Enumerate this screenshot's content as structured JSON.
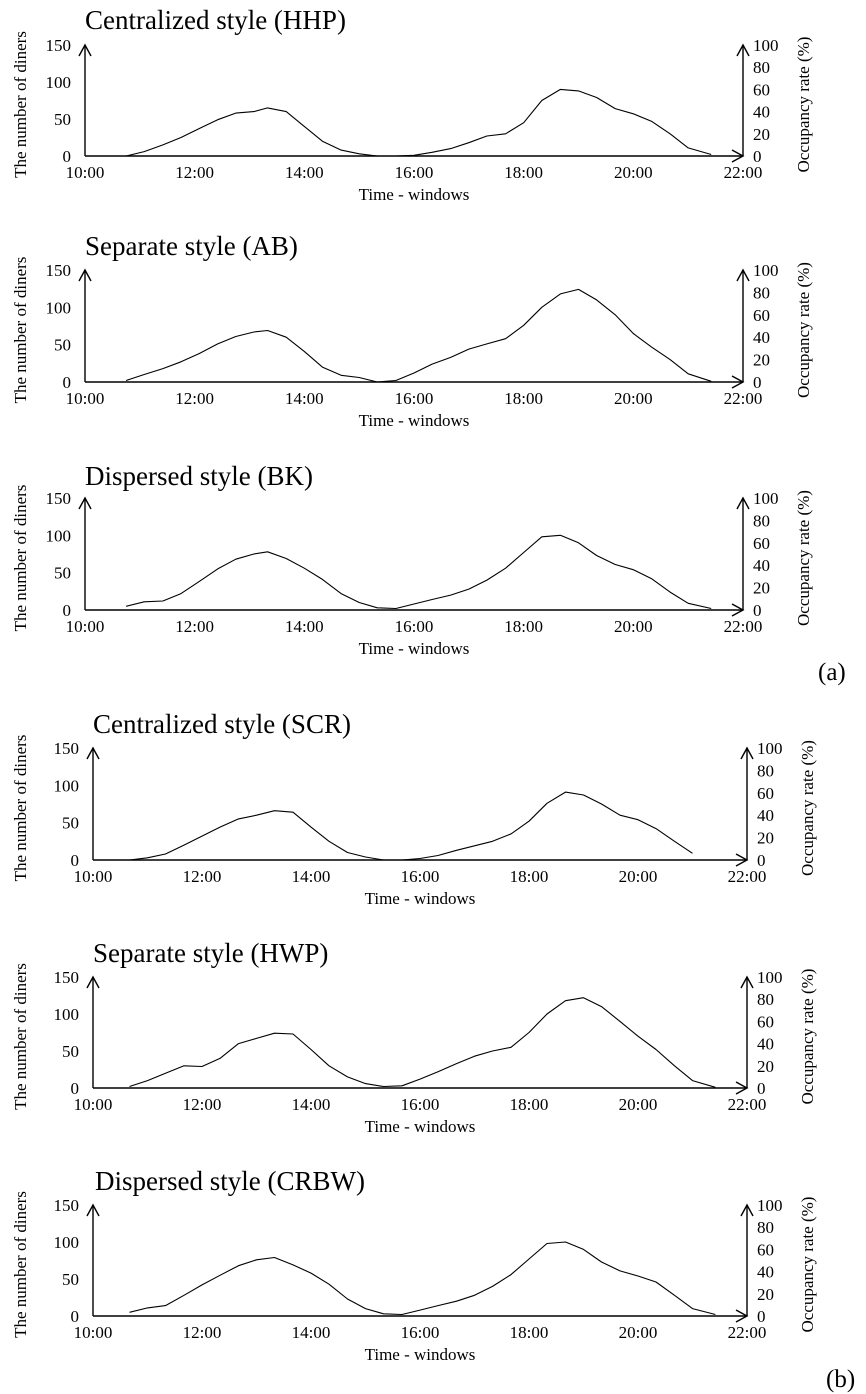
{
  "panel_labels": [
    "(a)",
    "(b)"
  ],
  "chart_data": [
    {
      "type": "line",
      "panel": "(a)",
      "title": "Centralized style (HHP)",
      "xlabel": "Time - windows",
      "ylabel": "The number of diners",
      "y2label": "Occupancy rate (%)",
      "x_ticks": [
        "10:00",
        "12:00",
        "14:00",
        "16:00",
        "18:00",
        "20:00",
        "22:00"
      ],
      "xlim": [
        10,
        22
      ],
      "y_ticks": [
        "0",
        "50",
        "100",
        "150"
      ],
      "ylim": [
        0,
        150
      ],
      "y2_ticks": [
        "0",
        "20",
        "40",
        "60",
        "80",
        "100"
      ],
      "y2lim": [
        0,
        100
      ],
      "series": [
        {
          "x": [
            10.75,
            11.08,
            11.42,
            11.75,
            12.08,
            12.42,
            12.75,
            13.08,
            13.33,
            13.67,
            14.0,
            14.33,
            14.67,
            15.0,
            15.33,
            15.67,
            16.0,
            16.33,
            16.67,
            17.0,
            17.33,
            17.67,
            18.0,
            18.33,
            18.67,
            19.0,
            19.33,
            19.67,
            20.0,
            20.33,
            20.67,
            21.0,
            21.42
          ],
          "y": [
            0,
            6,
            15,
            25,
            37,
            49,
            58,
            60,
            65,
            60,
            40,
            20,
            8,
            3,
            0,
            0,
            1,
            5,
            10,
            18,
            27,
            30,
            45,
            75,
            90,
            88,
            79,
            64,
            57,
            47,
            30,
            11,
            2
          ]
        }
      ]
    },
    {
      "type": "line",
      "panel": "(a)",
      "title": "Separate style (AB)",
      "xlabel": "Time - windows",
      "ylabel": "The number of diners",
      "y2label": "Occupancy rate (%)",
      "x_ticks": [
        "10:00",
        "12:00",
        "14:00",
        "16:00",
        "18:00",
        "20:00",
        "22:00"
      ],
      "xlim": [
        10,
        22
      ],
      "y_ticks": [
        "0",
        "50",
        "100",
        "150"
      ],
      "ylim": [
        0,
        150
      ],
      "y2_ticks": [
        "0",
        "20",
        "40",
        "60",
        "80",
        "100"
      ],
      "y2lim": [
        0,
        100
      ],
      "series": [
        {
          "x": [
            10.75,
            11.08,
            11.42,
            11.75,
            12.08,
            12.42,
            12.75,
            13.08,
            13.33,
            13.67,
            14.0,
            14.33,
            14.67,
            15.0,
            15.33,
            15.67,
            16.0,
            16.33,
            16.67,
            17.0,
            17.33,
            17.67,
            18.0,
            18.33,
            18.67,
            19.0,
            19.33,
            19.67,
            20.0,
            20.33,
            20.67,
            21.0,
            21.42
          ],
          "y": [
            2,
            10,
            18,
            27,
            38,
            51,
            61,
            67,
            69,
            60,
            41,
            20,
            9,
            6,
            0,
            2,
            12,
            24,
            33,
            44,
            51,
            58,
            76,
            100,
            118,
            124,
            110,
            90,
            65,
            47,
            30,
            11,
            1
          ]
        }
      ]
    },
    {
      "type": "line",
      "panel": "(a)",
      "title": "Dispersed style (BK)",
      "xlabel": "Time - windows",
      "ylabel": "The number of diners",
      "y2label": "Occupancy rate (%)",
      "x_ticks": [
        "10:00",
        "12:00",
        "14:00",
        "16:00",
        "18:00",
        "20:00",
        "22:00"
      ],
      "xlim": [
        10,
        22
      ],
      "y_ticks": [
        "0",
        "50",
        "100",
        "150"
      ],
      "ylim": [
        0,
        150
      ],
      "y2_ticks": [
        "0",
        "20",
        "40",
        "60",
        "80",
        "100"
      ],
      "y2lim": [
        0,
        100
      ],
      "series": [
        {
          "x": [
            10.75,
            11.08,
            11.42,
            11.75,
            12.08,
            12.42,
            12.75,
            13.08,
            13.33,
            13.67,
            14.0,
            14.33,
            14.67,
            15.0,
            15.33,
            15.67,
            16.0,
            16.33,
            16.67,
            17.0,
            17.33,
            17.67,
            18.0,
            18.33,
            18.67,
            19.0,
            19.33,
            19.67,
            20.0,
            20.33,
            20.67,
            21.0,
            21.42
          ],
          "y": [
            5,
            11,
            12,
            22,
            38,
            55,
            68,
            75,
            78,
            69,
            56,
            41,
            22,
            10,
            3,
            2,
            8,
            14,
            20,
            28,
            40,
            56,
            77,
            98,
            100,
            90,
            73,
            61,
            54,
            42,
            24,
            9,
            2
          ]
        }
      ]
    },
    {
      "type": "line",
      "panel": "(b)",
      "title": "Centralized style (SCR)",
      "xlabel": "Time - windows",
      "ylabel": "The number of diners",
      "y2label": "Occupancy rate (%)",
      "x_ticks": [
        "10:00",
        "12:00",
        "14:00",
        "16:00",
        "18:00",
        "20:00",
        "22:00"
      ],
      "xlim": [
        10,
        22
      ],
      "y_ticks": [
        "0",
        "50",
        "100",
        "150"
      ],
      "ylim": [
        0,
        150
      ],
      "y2_ticks": [
        "0",
        "20",
        "40",
        "60",
        "80",
        "100"
      ],
      "y2lim": [
        0,
        100
      ],
      "series": [
        {
          "x": [
            10.67,
            11.0,
            11.33,
            11.67,
            12.0,
            12.33,
            12.67,
            13.0,
            13.33,
            13.67,
            14.0,
            14.33,
            14.67,
            15.0,
            15.33,
            15.67,
            16.0,
            16.33,
            16.67,
            17.0,
            17.33,
            17.67,
            18.0,
            18.33,
            18.67,
            19.0,
            19.33,
            19.67,
            20.0,
            20.33,
            20.67,
            21.0
          ],
          "y": [
            0,
            3,
            8,
            20,
            32,
            44,
            55,
            60,
            66,
            64,
            44,
            25,
            10,
            4,
            0,
            0,
            2,
            6,
            13,
            19,
            25,
            35,
            52,
            76,
            91,
            87,
            75,
            60,
            54,
            42,
            25,
            9
          ]
        }
      ]
    },
    {
      "type": "line",
      "panel": "(b)",
      "title": "Separate style (HWP)",
      "xlabel": "Time - windows",
      "ylabel": "The number of diners",
      "y2label": "Occupancy rate (%)",
      "x_ticks": [
        "10:00",
        "12:00",
        "14:00",
        "16:00",
        "18:00",
        "20:00",
        "22:00"
      ],
      "xlim": [
        10,
        22
      ],
      "y_ticks": [
        "0",
        "50",
        "100",
        "150"
      ],
      "ylim": [
        0,
        150
      ],
      "y2_ticks": [
        "0",
        "20",
        "40",
        "60",
        "80",
        "100"
      ],
      "y2lim": [
        0,
        100
      ],
      "series": [
        {
          "x": [
            10.67,
            11.0,
            11.33,
            11.67,
            12.0,
            12.33,
            12.67,
            13.0,
            13.33,
            13.67,
            14.0,
            14.33,
            14.67,
            15.0,
            15.33,
            15.67,
            16.0,
            16.33,
            16.67,
            17.0,
            17.33,
            17.67,
            18.0,
            18.33,
            18.67,
            19.0,
            19.33,
            19.67,
            20.0,
            20.33,
            20.67,
            21.0,
            21.42
          ],
          "y": [
            2,
            10,
            20,
            30,
            29,
            40,
            60,
            67,
            74,
            73,
            52,
            30,
            15,
            6,
            2,
            3,
            12,
            22,
            33,
            43,
            50,
            55,
            75,
            100,
            118,
            122,
            110,
            90,
            70,
            52,
            30,
            10,
            1
          ]
        }
      ]
    },
    {
      "type": "line",
      "panel": "(b)",
      "title": "Dispersed style (CRBW)",
      "xlabel": "Time - windows",
      "ylabel": "The number of diners",
      "y2label": "Occupancy rate (%)",
      "x_ticks": [
        "10:00",
        "12:00",
        "14:00",
        "16:00",
        "18:00",
        "20:00",
        "22:00"
      ],
      "xlim": [
        10,
        22
      ],
      "y_ticks": [
        "0",
        "50",
        "100",
        "150"
      ],
      "ylim": [
        0,
        150
      ],
      "y2_ticks": [
        "0",
        "20",
        "40",
        "60",
        "80",
        "100"
      ],
      "y2lim": [
        0,
        100
      ],
      "series": [
        {
          "x": [
            10.67,
            11.0,
            11.33,
            11.67,
            12.0,
            12.33,
            12.67,
            13.0,
            13.33,
            13.67,
            14.0,
            14.33,
            14.67,
            15.0,
            15.33,
            15.67,
            16.0,
            16.33,
            16.67,
            17.0,
            17.33,
            17.67,
            18.0,
            18.33,
            18.67,
            19.0,
            19.33,
            19.67,
            20.0,
            20.33,
            20.67,
            21.0,
            21.42
          ],
          "y": [
            5,
            11,
            14,
            28,
            42,
            55,
            68,
            76,
            79,
            69,
            58,
            43,
            23,
            10,
            3,
            2,
            8,
            14,
            20,
            28,
            40,
            56,
            77,
            98,
            100,
            90,
            73,
            61,
            54,
            46,
            28,
            10,
            2
          ]
        }
      ]
    }
  ]
}
